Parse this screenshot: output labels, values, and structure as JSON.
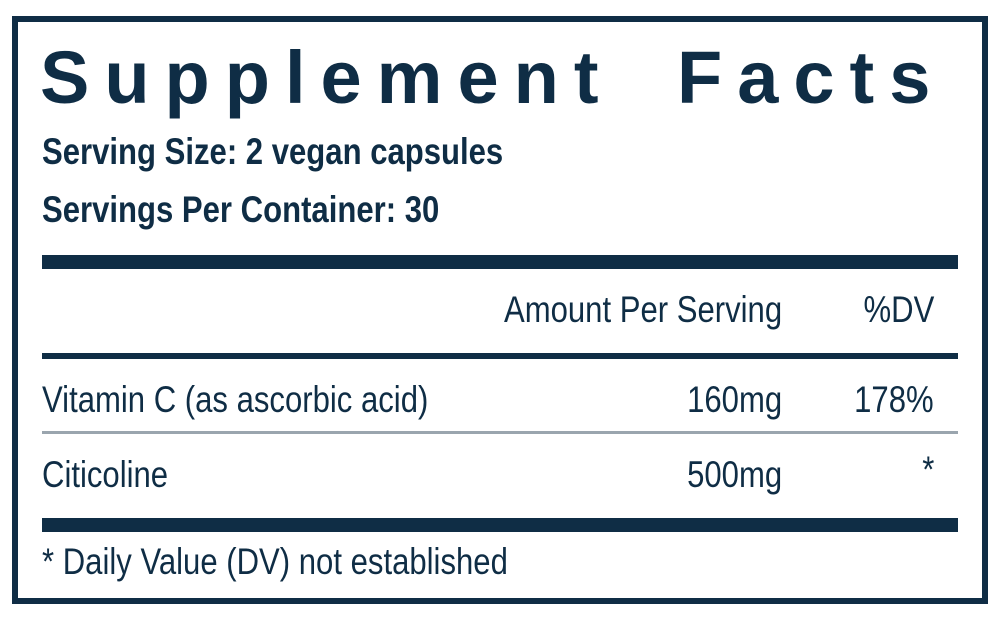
{
  "title": "Supplement Facts",
  "serving_size": "Serving Size: 2 vegan capsules",
  "servings_per_container": "Servings Per Container: 30",
  "header": {
    "amount": "Amount Per Serving",
    "dv": "%DV"
  },
  "rows": [
    {
      "name": "Vitamin C (as ascorbic acid)",
      "amount": "160mg",
      "dv": "178%"
    },
    {
      "name": "Citicoline",
      "amount": "500mg",
      "dv": "*"
    }
  ],
  "footnote": "* Daily Value (DV) not established",
  "colors": {
    "ink": "#0f2d45",
    "divider": "#9aa5ae"
  }
}
